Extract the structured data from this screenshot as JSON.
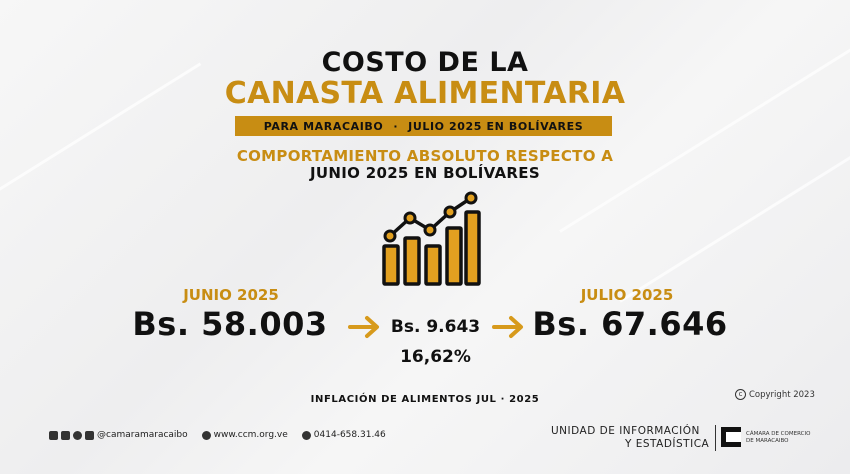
{
  "title": {
    "line1": "COSTO DE LA",
    "line2": "CANASTA ALIMENTARIA"
  },
  "band": {
    "left": "PARA MARACAIBO",
    "sep": "·",
    "right": "JULIO 2025 EN BOLÍVARES"
  },
  "subtitle": {
    "line1": "COMPORTAMIENTO ABSOLUTO RESPECTO A",
    "line2": "JUNIO 2025 EN BOLÍVARES"
  },
  "comparison": {
    "from_label": "JUNIO 2025",
    "from_value": "Bs. 58.003",
    "diff_value": "Bs. 9.643",
    "diff_pct": "16,62%",
    "to_label": "JULIO 2025",
    "to_value": "Bs. 67.646"
  },
  "inflation_note": "INFLACIÓN DE ALIMENTOS JUL · 2025",
  "copyright": "Copyright 2023",
  "footer": {
    "social_handle": "@camaramaracaibo",
    "website": "www.ccm.org.ve",
    "phone": "0414-658.31.46",
    "unit_line1": "UNIDAD DE INFORMACIÓN",
    "unit_line2": "Y ESTADÍSTICA",
    "logo_line1": "CÁMARA DE COMERCIO",
    "logo_line2": "DE MARACAIBO"
  },
  "colors": {
    "accent": "#c88d13",
    "text": "#111111",
    "background": "#f2f2f3"
  },
  "icons": [
    "growth-chart-icon",
    "arrow-right-icon",
    "instagram-icon",
    "facebook-icon",
    "threads-icon",
    "x-icon",
    "globe-icon",
    "whatsapp-icon",
    "copyright-icon"
  ]
}
